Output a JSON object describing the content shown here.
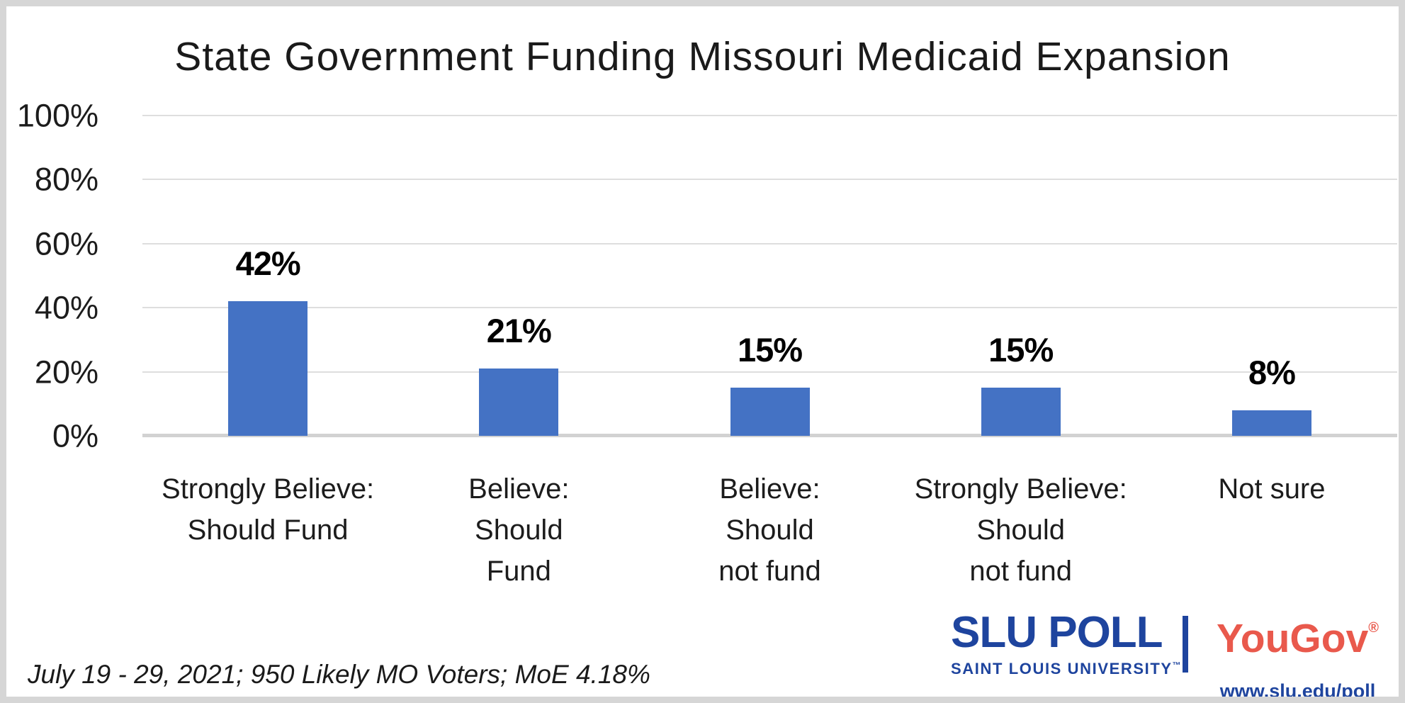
{
  "chart_data": {
    "type": "bar",
    "title": "State Government Funding Missouri Medicaid Expansion",
    "categories": [
      "Strongly Believe: Should Fund",
      "Believe: Should Fund",
      "Believe: Should not fund",
      "Strongly Believe: Should not fund",
      "Not sure"
    ],
    "category_lines": [
      [
        "Strongly Believe:",
        "Should Fund"
      ],
      [
        "Believe:",
        "Should",
        "Fund"
      ],
      [
        "Believe:",
        "Should",
        "not fund"
      ],
      [
        "Strongly Believe:",
        "Should",
        "not fund"
      ],
      [
        "Not sure"
      ]
    ],
    "values": [
      42,
      21,
      15,
      15,
      8
    ],
    "value_labels": [
      "42%",
      "21%",
      "15%",
      "15%",
      "8%"
    ],
    "xlabel": "",
    "ylabel": "",
    "ylim": [
      0,
      100
    ],
    "yticks": [
      {
        "value": 100,
        "label": "100%"
      },
      {
        "value": 80,
        "label": "80%"
      },
      {
        "value": 60,
        "label": "60%"
      },
      {
        "value": 40,
        "label": "40%"
      },
      {
        "value": 20,
        "label": "20%"
      },
      {
        "value": 0,
        "label": "0%"
      }
    ],
    "grid": true,
    "legend": false,
    "bar_color": "#4472C4"
  },
  "footer": {
    "note": "July 19 - 29, 2021; 950 Likely MO Voters; MoE 4.18%"
  },
  "branding": {
    "slu_title": "SLU POLL",
    "slu_subtitle": "SAINT LOUIS UNIVERSITY",
    "slu_trademark": "™",
    "partner_name": "YouGov",
    "partner_registered": "®",
    "website": "www.slu.edu/poll"
  },
  "colors": {
    "bar": "#4472C4",
    "slu_blue": "#1E449E",
    "yougov_red": "#E9594C",
    "gridline": "#DEDEDE",
    "axis_line": "#D2D2D2",
    "frame": "#D6D6D6"
  }
}
